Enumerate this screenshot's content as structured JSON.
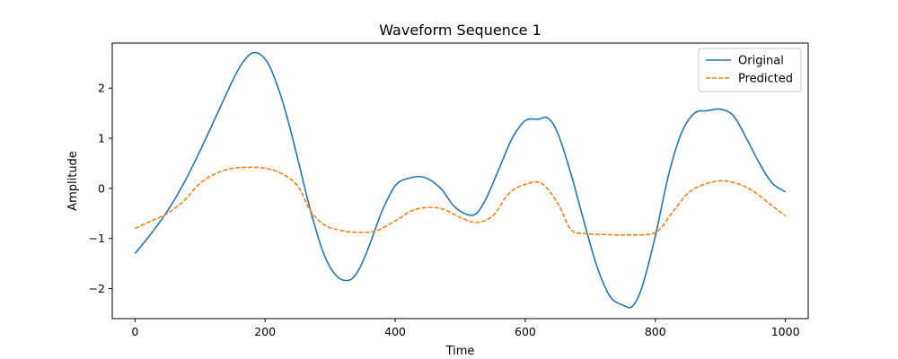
{
  "chart_data": {
    "type": "line",
    "title": "Waveform Sequence 1",
    "xlabel": "Time",
    "ylabel": "Amplitude",
    "xlim": [
      -35,
      1035
    ],
    "ylim": [
      -2.6,
      2.9
    ],
    "xticks": [
      0,
      200,
      400,
      600,
      800,
      1000
    ],
    "yticks": [
      -2,
      -1,
      0,
      1,
      2
    ],
    "grid": false,
    "legend_position": "top-right",
    "series": [
      {
        "name": "Original",
        "color": "#1f77b4",
        "style": "solid",
        "x": [
          0,
          25,
          50,
          75,
          100,
          125,
          150,
          165,
          180,
          195,
          210,
          230,
          250,
          270,
          290,
          310,
          330,
          345,
          360,
          380,
          400,
          420,
          445,
          470,
          490,
          510,
          525,
          540,
          560,
          580,
          600,
          620,
          635,
          650,
          670,
          690,
          710,
          730,
          750,
          765,
          780,
          800,
          820,
          840,
          860,
          880,
          900,
          920,
          940,
          960,
          980,
          1000
        ],
        "y": [
          -1.3,
          -0.9,
          -0.45,
          0.1,
          0.75,
          1.45,
          2.15,
          2.5,
          2.7,
          2.65,
          2.35,
          1.6,
          0.6,
          -0.45,
          -1.3,
          -1.75,
          -1.83,
          -1.6,
          -1.15,
          -0.45,
          0.05,
          0.2,
          0.22,
          0.0,
          -0.35,
          -0.52,
          -0.5,
          -0.2,
          0.4,
          1.0,
          1.35,
          1.38,
          1.4,
          1.1,
          0.3,
          -0.65,
          -1.55,
          -2.15,
          -2.33,
          -2.35,
          -1.95,
          -0.95,
          0.25,
          1.1,
          1.5,
          1.55,
          1.58,
          1.45,
          1.0,
          0.5,
          0.1,
          -0.07
        ]
      },
      {
        "name": "Predicted",
        "color": "#ff7f0e",
        "style": "dashed",
        "x": [
          0,
          25,
          50,
          75,
          100,
          125,
          150,
          175,
          200,
          225,
          250,
          270,
          290,
          310,
          340,
          370,
          400,
          425,
          450,
          475,
          500,
          525,
          550,
          575,
          600,
          625,
          650,
          670,
          690,
          720,
          760,
          800,
          825,
          850,
          875,
          900,
          925,
          950,
          975,
          1000
        ],
        "y": [
          -0.8,
          -0.65,
          -0.5,
          -0.25,
          0.1,
          0.3,
          0.4,
          0.42,
          0.4,
          0.3,
          0.05,
          -0.45,
          -0.72,
          -0.82,
          -0.88,
          -0.85,
          -0.65,
          -0.45,
          -0.38,
          -0.42,
          -0.58,
          -0.68,
          -0.55,
          -0.1,
          0.08,
          0.1,
          -0.3,
          -0.82,
          -0.9,
          -0.92,
          -0.93,
          -0.88,
          -0.5,
          -0.1,
          0.08,
          0.15,
          0.1,
          -0.05,
          -0.3,
          -0.55
        ]
      }
    ]
  }
}
